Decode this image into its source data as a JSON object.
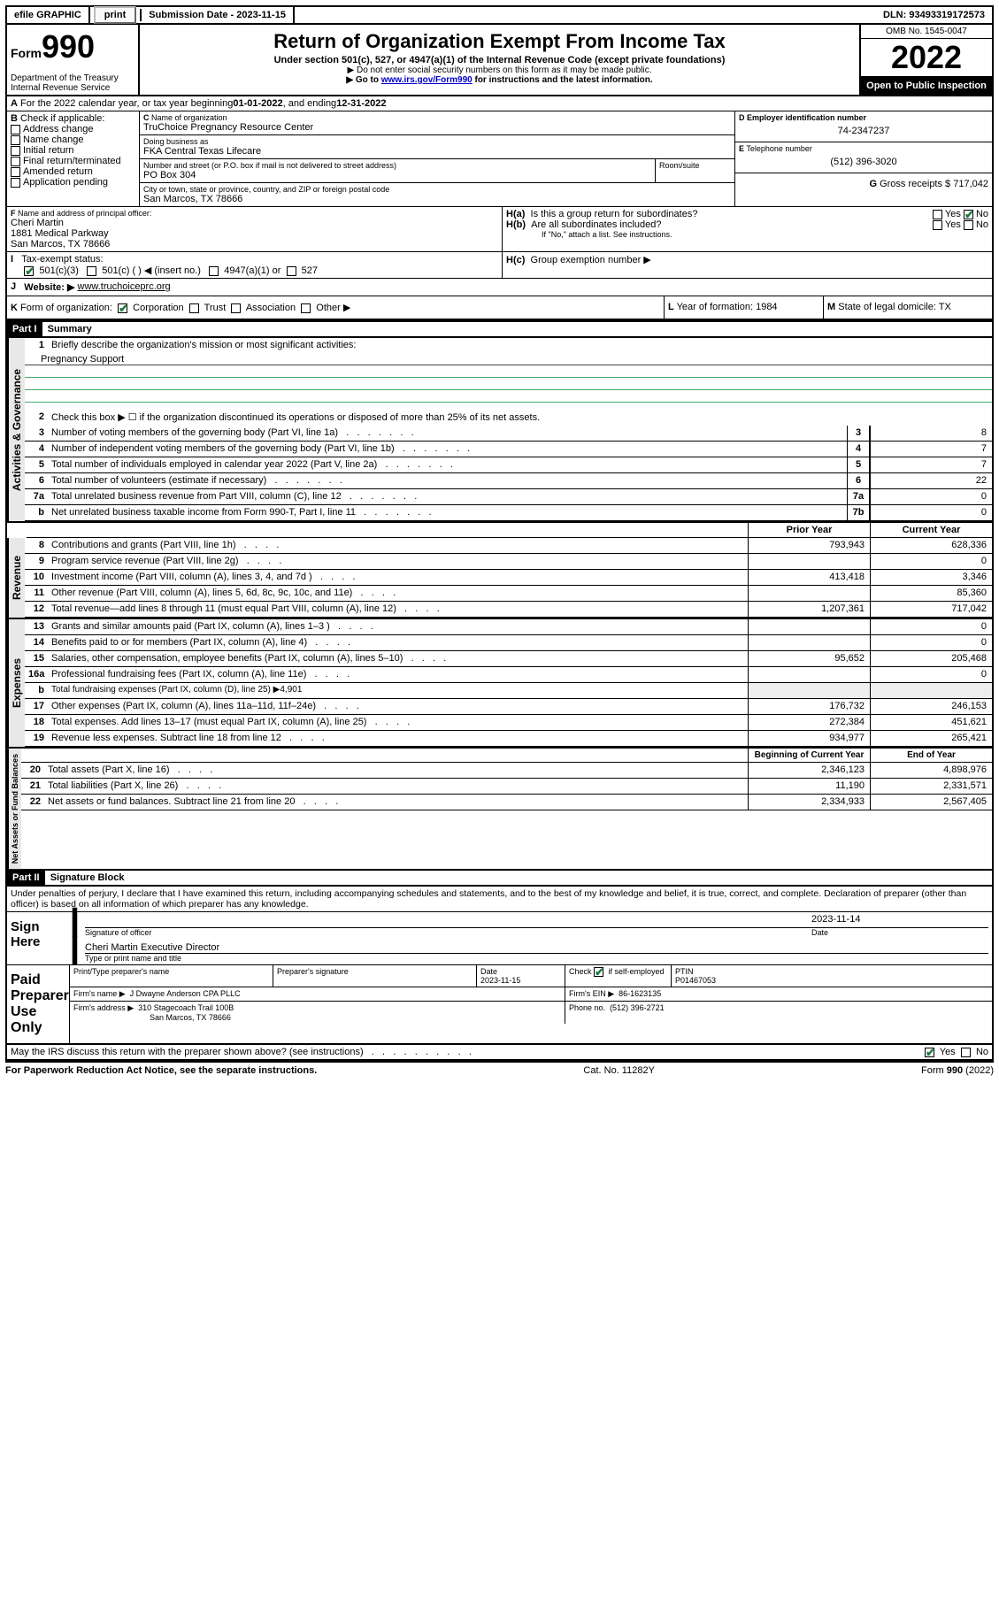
{
  "topbar": {
    "efile": "efile GRAPHIC",
    "print": "print",
    "subdate_label": "Submission Date - ",
    "subdate": "2023-11-15",
    "dln_label": "DLN: ",
    "dln": "93493319172573"
  },
  "header": {
    "form_prefix": "Form",
    "form_num": "990",
    "dept": "Department of the Treasury",
    "irs": "Internal Revenue Service",
    "title": "Return of Organization Exempt From Income Tax",
    "sub1": "Under section 501(c), 527, or 4947(a)(1) of the Internal Revenue Code (except private foundations)",
    "sub2": "▶ Do not enter social security numbers on this form as it may be made public.",
    "sub3_pre": "▶ Go to ",
    "sub3_link": "www.irs.gov/Form990",
    "sub3_post": " for instructions and the latest information.",
    "omb": "OMB No. 1545-0047",
    "year": "2022",
    "open": "Open to Public Inspection"
  },
  "A": {
    "text": "For the 2022 calendar year, or tax year beginning ",
    "begin": "01-01-2022",
    "mid": " , and ending ",
    "end": "12-31-2022"
  },
  "B": {
    "label": "Check if applicable:",
    "opts": [
      "Address change",
      "Name change",
      "Initial return",
      "Final return/terminated",
      "Amended return",
      "Application pending"
    ]
  },
  "C": {
    "label": "Name of organization",
    "name": "TruChoice Pregnancy Resource Center",
    "dba_label": "Doing business as",
    "dba": "FKA Central Texas Lifecare",
    "street_label": "Number and street (or P.O. box if mail is not delivered to street address)",
    "street": "PO Box 304",
    "room_label": "Room/suite",
    "city_label": "City or town, state or province, country, and ZIP or foreign postal code",
    "city": "San Marcos, TX  78666"
  },
  "D": {
    "label": "Employer identification number",
    "val": "74-2347237"
  },
  "E": {
    "label": "Telephone number",
    "val": "(512) 396-3020"
  },
  "G": {
    "label": "Gross receipts $",
    "val": "717,042"
  },
  "F": {
    "label": "Name and address of principal officer:",
    "name": "Cheri Martin",
    "addr1": "1881 Medical Parkway",
    "addr2": "San Marcos, TX  78666"
  },
  "H": {
    "a": "Is this a group return for subordinates?",
    "a_yes": "Yes",
    "a_no": "No",
    "b": "Are all subordinates included?",
    "b_note": "If \"No,\" attach a list. See instructions.",
    "c": "Group exemption number ▶"
  },
  "I": {
    "label": "Tax-exempt status:",
    "c3": "501(c)(3)",
    "c": "501(c) (  ) ◀ (insert no.)",
    "a1": "4947(a)(1) or",
    "s527": "527"
  },
  "J": {
    "label": "Website: ▶",
    "val": "www.truchoiceprc.org"
  },
  "K": {
    "label": "Form of organization:",
    "opts": [
      "Corporation",
      "Trust",
      "Association",
      "Other ▶"
    ]
  },
  "L": {
    "label": "Year of formation:",
    "val": "1984"
  },
  "M": {
    "label": "State of legal domicile:",
    "val": "TX"
  },
  "part1": {
    "title": "Part I",
    "name": "Summary",
    "l1": "Briefly describe the organization's mission or most significant activities:",
    "l1v": "Pregnancy Support",
    "l2": "Check this box ▶ ☐ if the organization discontinued its operations or disposed of more than 25% of its net assets.",
    "lines": [
      {
        "n": "3",
        "d": "Number of voting members of the governing body (Part VI, line 1a)",
        "box": "3",
        "v": "8"
      },
      {
        "n": "4",
        "d": "Number of independent voting members of the governing body (Part VI, line 1b)",
        "box": "4",
        "v": "7"
      },
      {
        "n": "5",
        "d": "Total number of individuals employed in calendar year 2022 (Part V, line 2a)",
        "box": "5",
        "v": "7"
      },
      {
        "n": "6",
        "d": "Total number of volunteers (estimate if necessary)",
        "box": "6",
        "v": "22"
      },
      {
        "n": "7a",
        "d": "Total unrelated business revenue from Part VIII, column (C), line 12",
        "box": "7a",
        "v": "0"
      },
      {
        "n": "b",
        "d": "Net unrelated business taxable income from Form 990-T, Part I, line 11",
        "box": "7b",
        "v": "0"
      }
    ],
    "tab_gov": "Activities & Governance",
    "tab_rev": "Revenue",
    "tab_exp": "Expenses",
    "tab_net": "Net Assets or Fund Balances",
    "col_prior": "Prior Year",
    "col_curr": "Current Year",
    "rev": [
      {
        "n": "8",
        "d": "Contributions and grants (Part VIII, line 1h)",
        "p": "793,943",
        "c": "628,336"
      },
      {
        "n": "9",
        "d": "Program service revenue (Part VIII, line 2g)",
        "p": "",
        "c": "0"
      },
      {
        "n": "10",
        "d": "Investment income (Part VIII, column (A), lines 3, 4, and 7d )",
        "p": "413,418",
        "c": "3,346"
      },
      {
        "n": "11",
        "d": "Other revenue (Part VIII, column (A), lines 5, 6d, 8c, 9c, 10c, and 11e)",
        "p": "",
        "c": "85,360"
      },
      {
        "n": "12",
        "d": "Total revenue—add lines 8 through 11 (must equal Part VIII, column (A), line 12)",
        "p": "1,207,361",
        "c": "717,042"
      }
    ],
    "exp": [
      {
        "n": "13",
        "d": "Grants and similar amounts paid (Part IX, column (A), lines 1–3 )",
        "p": "",
        "c": "0"
      },
      {
        "n": "14",
        "d": "Benefits paid to or for members (Part IX, column (A), line 4)",
        "p": "",
        "c": "0"
      },
      {
        "n": "15",
        "d": "Salaries, other compensation, employee benefits (Part IX, column (A), lines 5–10)",
        "p": "95,652",
        "c": "205,468"
      },
      {
        "n": "16a",
        "d": "Professional fundraising fees (Part IX, column (A), line 11e)",
        "p": "",
        "c": "0"
      },
      {
        "n": "b",
        "d": "Total fundraising expenses (Part IX, column (D), line 25) ▶4,901",
        "p": null,
        "c": null
      },
      {
        "n": "17",
        "d": "Other expenses (Part IX, column (A), lines 11a–11d, 11f–24e)",
        "p": "176,732",
        "c": "246,153"
      },
      {
        "n": "18",
        "d": "Total expenses. Add lines 13–17 (must equal Part IX, column (A), line 25)",
        "p": "272,384",
        "c": "451,621"
      },
      {
        "n": "19",
        "d": "Revenue less expenses. Subtract line 18 from line 12",
        "p": "934,977",
        "c": "265,421"
      }
    ],
    "col_beg": "Beginning of Current Year",
    "col_end": "End of Year",
    "net": [
      {
        "n": "20",
        "d": "Total assets (Part X, line 16)",
        "p": "2,346,123",
        "c": "4,898,976"
      },
      {
        "n": "21",
        "d": "Total liabilities (Part X, line 26)",
        "p": "11,190",
        "c": "2,331,571"
      },
      {
        "n": "22",
        "d": "Net assets or fund balances. Subtract line 21 from line 20",
        "p": "2,334,933",
        "c": "2,567,405"
      }
    ]
  },
  "part2": {
    "title": "Part II",
    "name": "Signature Block",
    "decl": "Under penalties of perjury, I declare that I have examined this return, including accompanying schedules and statements, and to the best of my knowledge and belief, it is true, correct, and complete. Declaration of preparer (other than officer) is based on all information of which preparer has any knowledge.",
    "sign_here": "Sign Here",
    "sig_officer": "Signature of officer",
    "sig_date": "Date",
    "sig_date_v": "2023-11-14",
    "name_title": "Cheri Martin  Executive Director",
    "name_title_label": "Type or print name and title",
    "paid": "Paid Preparer Use Only",
    "pt_name": "Print/Type preparer's name",
    "pt_sig": "Preparer's signature",
    "pt_date": "Date",
    "pt_date_v": "2023-11-15",
    "pt_check": "Check ☑ if self-employed",
    "ptin_l": "PTIN",
    "ptin": "P01467053",
    "firm_name_l": "Firm's name    ▶",
    "firm_name": "J Dwayne Anderson CPA PLLC",
    "firm_ein_l": "Firm's EIN ▶",
    "firm_ein": "86-1623135",
    "firm_addr_l": "Firm's address ▶",
    "firm_addr1": "310 Stagecoach Trail 100B",
    "firm_addr2": "San Marcos, TX  78666",
    "firm_phone_l": "Phone no.",
    "firm_phone": "(512) 396-2721",
    "discuss": "May the IRS discuss this return with the preparer shown above? (see instructions)",
    "d_yes": "Yes",
    "d_no": "No"
  },
  "footer": {
    "left": "For Paperwork Reduction Act Notice, see the separate instructions.",
    "mid": "Cat. No. 11282Y",
    "right": "Form 990 (2022)"
  }
}
